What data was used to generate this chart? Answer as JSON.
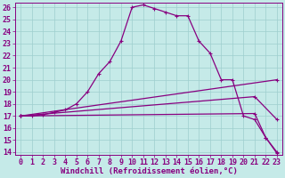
{
  "xlabel": "Windchill (Refroidissement éolien,°C)",
  "bg_color": "#c5eae8",
  "grid_color": "#9ecece",
  "line_color": "#880080",
  "ylim": [
    13.8,
    26.4
  ],
  "xlim": [
    -0.5,
    23.5
  ],
  "yticks": [
    14,
    15,
    16,
    17,
    18,
    19,
    20,
    21,
    22,
    23,
    24,
    25,
    26
  ],
  "xticks": [
    0,
    1,
    2,
    3,
    4,
    5,
    6,
    7,
    8,
    9,
    10,
    11,
    12,
    13,
    14,
    15,
    16,
    17,
    18,
    19,
    20,
    21,
    22,
    23
  ],
  "curve1_x": [
    0,
    1,
    2,
    3,
    4,
    5,
    6,
    7,
    8,
    9,
    10,
    11,
    12,
    13,
    14,
    15,
    16,
    17,
    18,
    19,
    20,
    21,
    22,
    23
  ],
  "curve1_y": [
    17.0,
    17.0,
    17.1,
    17.3,
    17.5,
    18.0,
    19.0,
    20.5,
    21.5,
    23.2,
    26.0,
    26.2,
    25.9,
    25.6,
    25.3,
    25.3,
    23.2,
    22.2,
    20.0,
    20.0,
    17.0,
    16.7,
    15.2,
    14.0
  ],
  "curve2_x": [
    0,
    23
  ],
  "curve2_y": [
    17.0,
    20.0
  ],
  "curve3_x": [
    0,
    21,
    23
  ],
  "curve3_y": [
    17.0,
    18.6,
    16.7
  ],
  "curve4_x": [
    0,
    21,
    22,
    23
  ],
  "curve4_y": [
    17.0,
    17.2,
    15.2,
    13.9
  ],
  "markersize": 2.5,
  "linewidth": 0.9,
  "xlabel_fontsize": 6.5,
  "tick_fontsize": 6
}
